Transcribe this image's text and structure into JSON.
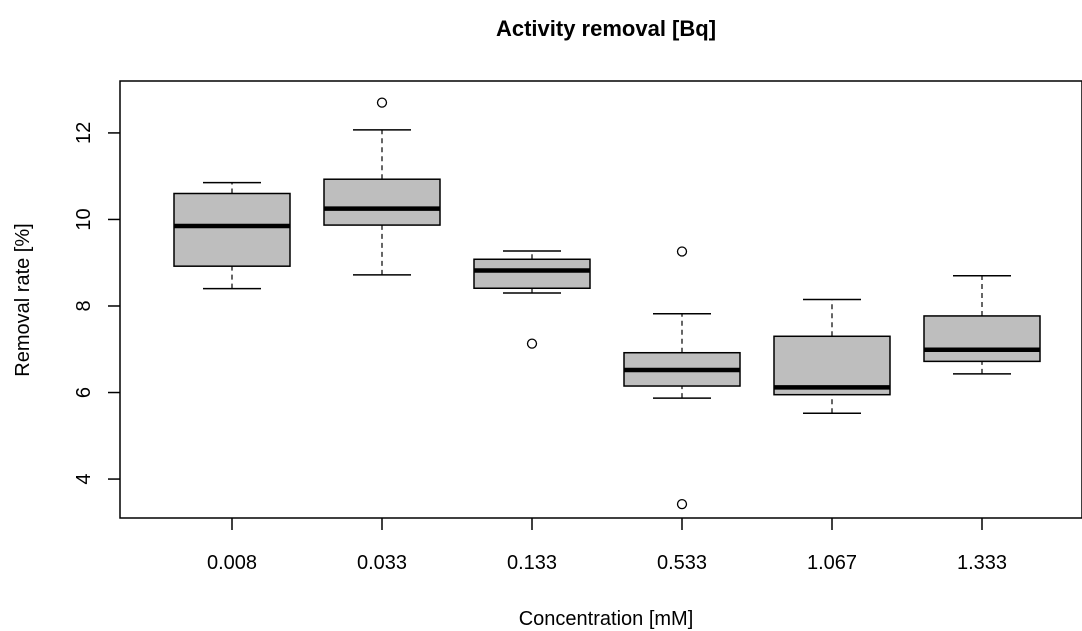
{
  "chart_data": {
    "type": "boxplot",
    "title": "Activity removal [Bq]",
    "xlabel": "Concentration [mM]",
    "ylabel": "Removal rate [%]",
    "categories": [
      "0.008",
      "0.033",
      "0.133",
      "0.533",
      "1.067",
      "1.333"
    ],
    "yticks": [
      4,
      6,
      8,
      10,
      12
    ],
    "ylim": [
      3.1,
      13.2
    ],
    "grid": false,
    "legend": "none",
    "boxes": [
      {
        "category": "0.008",
        "whisker_low": 8.4,
        "q1": 8.92,
        "median": 9.85,
        "q3": 10.6,
        "whisker_high": 10.85,
        "outliers": []
      },
      {
        "category": "0.033",
        "whisker_low": 8.72,
        "q1": 9.87,
        "median": 10.25,
        "q3": 10.93,
        "whisker_high": 12.07,
        "outliers": [
          12.7
        ]
      },
      {
        "category": "0.133",
        "whisker_low": 8.3,
        "q1": 8.41,
        "median": 8.82,
        "q3": 9.08,
        "whisker_high": 9.27,
        "outliers": [
          7.13
        ]
      },
      {
        "category": "0.533",
        "whisker_low": 5.87,
        "q1": 6.15,
        "median": 6.52,
        "q3": 6.92,
        "whisker_high": 7.82,
        "outliers": [
          9.26,
          3.42
        ]
      },
      {
        "category": "1.067",
        "whisker_low": 5.52,
        "q1": 5.95,
        "median": 6.12,
        "q3": 7.3,
        "whisker_high": 8.15,
        "outliers": []
      },
      {
        "category": "1.333",
        "whisker_low": 6.43,
        "q1": 6.72,
        "median": 6.99,
        "q3": 7.77,
        "whisker_high": 8.7,
        "outliers": []
      }
    ],
    "colors": {
      "box_fill": "#bebebe",
      "stroke": "#000000"
    }
  }
}
